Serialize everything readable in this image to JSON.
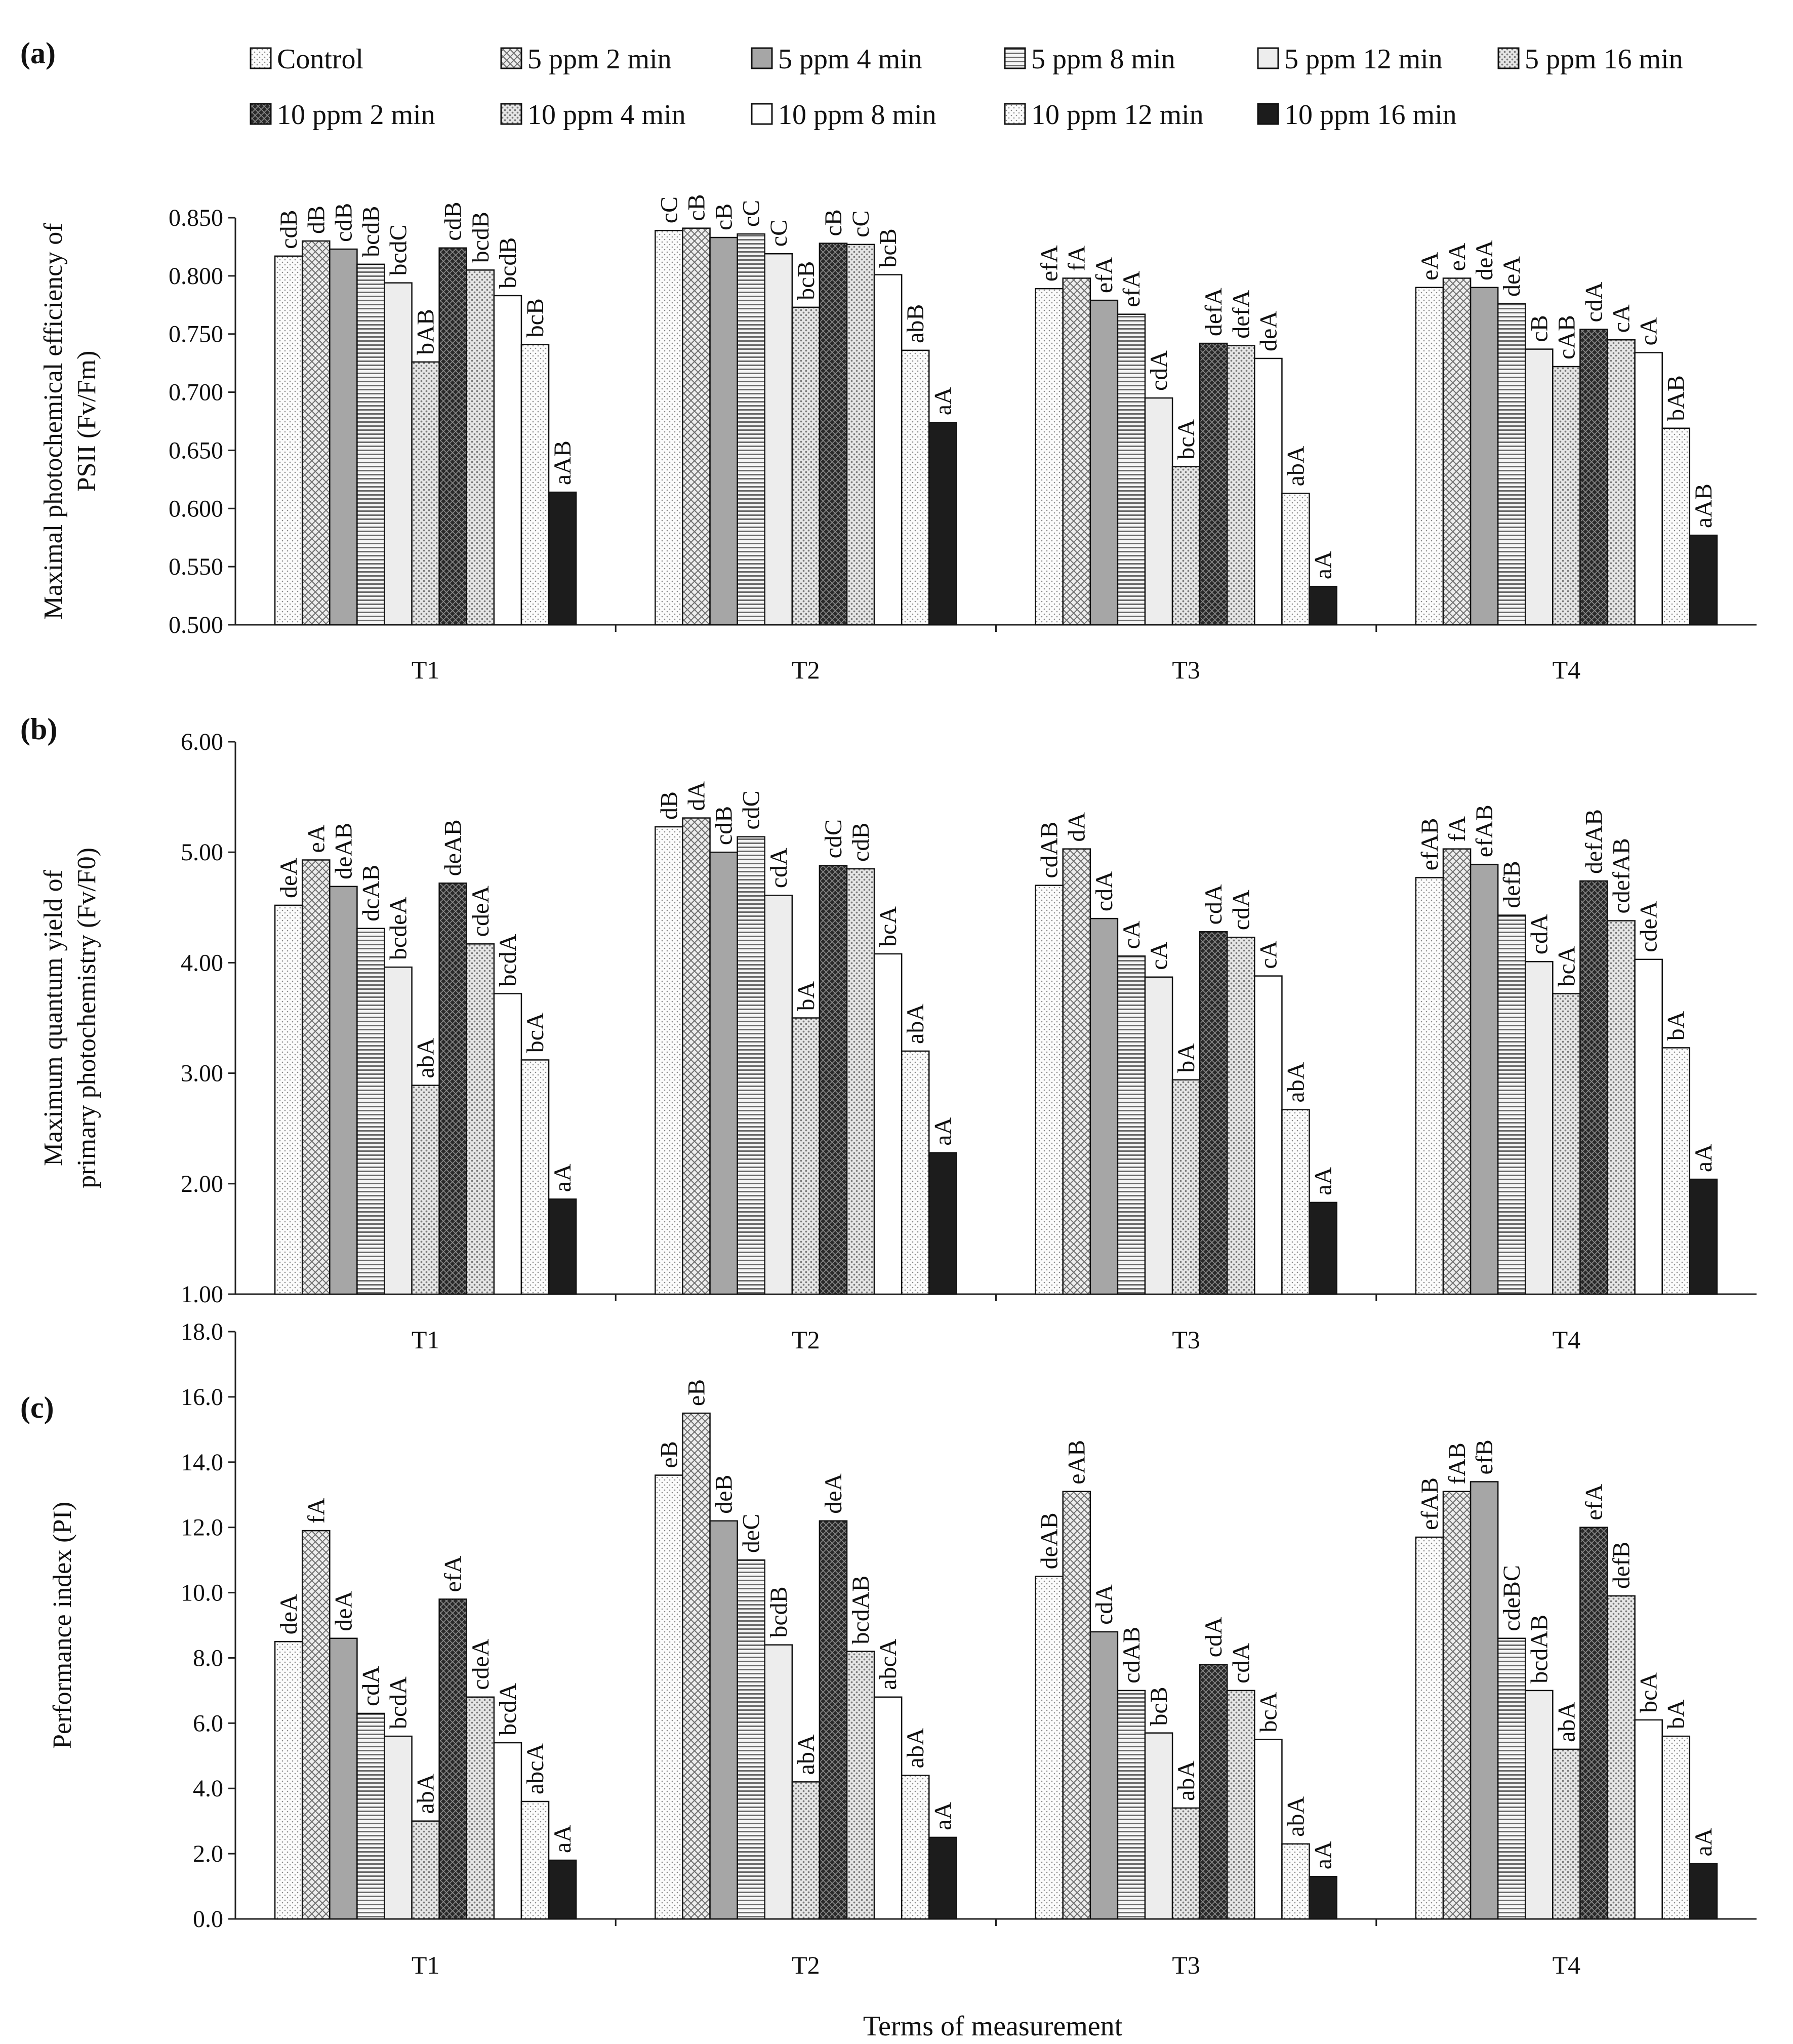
{
  "series_names": [
    "Control",
    "5 ppm 2 min",
    "5 ppm 4 min",
    "5 ppm 8 min",
    "5 ppm 12 min",
    "5 ppm 16 min",
    "10 ppm 2 min",
    "10 ppm 4 min",
    "10 ppm 8 min",
    "10 ppm 12 min",
    "10 ppm 16 min"
  ],
  "series_colors": [
    "#fafafa",
    "#d6d6d6",
    "#a6a6a6",
    "#dcdcdc",
    "#ededed",
    "#c2c2c2",
    "#3a3a3a",
    "#dedede",
    "#ffffff",
    "#9c9c9c",
    "#1c1c1c"
  ],
  "series_patterns": [
    "dots",
    "crosshatch",
    "solid",
    "hlines",
    "solid",
    "dotsdense",
    "diamond",
    "dotsdense",
    "solid",
    "dots",
    "solid"
  ],
  "chart_data": [
    {
      "panel_label": "(a)",
      "type": "bar",
      "title": "",
      "xlabel": "",
      "ylabel_line1": "Maximal photochemical efficiency of",
      "ylabel_line2": "PSII (Fv/Fm)",
      "ylim": [
        0.5,
        0.85
      ],
      "ytick_values": [
        0.5,
        0.55,
        0.6,
        0.65,
        0.7,
        0.75,
        0.8,
        0.85
      ],
      "ytick_labels": [
        "0.500",
        "0.550",
        "0.600",
        "0.650",
        "0.700",
        "0.750",
        "0.800",
        "0.850"
      ],
      "categories": [
        "T1",
        "T2",
        "T3",
        "T4"
      ],
      "series": [
        {
          "name": "Control",
          "values": [
            0.817,
            0.839,
            0.789,
            0.79
          ]
        },
        {
          "name": "5 ppm 2 min",
          "values": [
            0.83,
            0.841,
            0.798,
            0.798
          ]
        },
        {
          "name": "5 ppm 4 min",
          "values": [
            0.823,
            0.833,
            0.779,
            0.79
          ]
        },
        {
          "name": "5 ppm 8 min",
          "values": [
            0.81,
            0.836,
            0.767,
            0.776
          ]
        },
        {
          "name": "5 ppm 12 min",
          "values": [
            0.794,
            0.819,
            0.695,
            0.737
          ]
        },
        {
          "name": "5 ppm 16 min",
          "values": [
            0.726,
            0.773,
            0.636,
            0.722
          ]
        },
        {
          "name": "10 ppm 2 min",
          "values": [
            0.824,
            0.828,
            0.742,
            0.754
          ]
        },
        {
          "name": "10 ppm 4 min",
          "values": [
            0.805,
            0.827,
            0.74,
            0.745
          ]
        },
        {
          "name": "10 ppm 8 min",
          "values": [
            0.783,
            0.801,
            0.729,
            0.734
          ]
        },
        {
          "name": "10 ppm 12 min",
          "values": [
            0.741,
            0.736,
            0.613,
            0.669
          ]
        },
        {
          "name": "10 ppm 16 min",
          "values": [
            0.614,
            0.674,
            0.533,
            0.577
          ]
        }
      ],
      "bar_labels": [
        [
          "cdB",
          "dB",
          "cdB",
          "bcdB",
          "bcdC",
          "bAB",
          "cdB",
          "bcdB",
          "bcdB",
          "bcB",
          "aAB"
        ],
        [
          "cC",
          "cB",
          "cB",
          "cC",
          "cC",
          "bcB",
          "cB",
          "cC",
          "bcB",
          "abB",
          "aA"
        ],
        [
          "efA",
          "fA",
          "efA",
          "efA",
          "cdA",
          "bcA",
          "defA",
          "defA",
          "deA",
          "abA",
          "aA"
        ],
        [
          "eA",
          "eA",
          "deA",
          "deA",
          "cB",
          "cAB",
          "cdA",
          "cA",
          "cA",
          "bAB",
          "aAB"
        ]
      ]
    },
    {
      "panel_label": "(b)",
      "type": "bar",
      "title": "",
      "xlabel": "",
      "ylabel_line1": "Maximum quantum yield of",
      "ylabel_line2": "primary photochemistry (Fv/F0)",
      "ylim": [
        1.0,
        6.0
      ],
      "ytick_values": [
        1,
        2,
        3,
        4,
        5,
        6
      ],
      "ytick_labels": [
        "1.00",
        "2.00",
        "3.00",
        "4.00",
        "5.00",
        "6.00"
      ],
      "categories": [
        "T1",
        "T2",
        "T3",
        "T4"
      ],
      "series": [
        {
          "name": "Control",
          "values": [
            4.52,
            5.23,
            4.7,
            4.77
          ]
        },
        {
          "name": "5 ppm 2 min",
          "values": [
            4.93,
            5.31,
            5.03,
            5.03
          ]
        },
        {
          "name": "5 ppm 4 min",
          "values": [
            4.69,
            5.0,
            4.4,
            4.89
          ]
        },
        {
          "name": "5 ppm 8 min",
          "values": [
            4.31,
            5.14,
            4.06,
            4.43
          ]
        },
        {
          "name": "5 ppm 12 min",
          "values": [
            3.96,
            4.61,
            3.87,
            4.01
          ]
        },
        {
          "name": "5 ppm 16 min",
          "values": [
            2.89,
            3.5,
            2.94,
            3.72
          ]
        },
        {
          "name": "10 ppm 2 min",
          "values": [
            4.72,
            4.88,
            4.28,
            4.74
          ]
        },
        {
          "name": "10 ppm 4 min",
          "values": [
            4.17,
            4.85,
            4.23,
            4.38
          ]
        },
        {
          "name": "10 ppm 8 min",
          "values": [
            3.72,
            4.08,
            3.88,
            4.03
          ]
        },
        {
          "name": "10 ppm 12 min",
          "values": [
            3.12,
            3.2,
            2.67,
            3.23
          ]
        },
        {
          "name": "10 ppm 16 min",
          "values": [
            1.86,
            2.28,
            1.83,
            2.04
          ]
        }
      ],
      "bar_labels": [
        [
          "deA",
          "eA",
          "deAB",
          "dcAB",
          "bcdeA",
          "abA",
          "deAB",
          "cdeA",
          "bcdA",
          "bcA",
          "aA"
        ],
        [
          "dB",
          "dA",
          "cdB",
          "cdC",
          "cdA",
          "bA",
          "cdC",
          "cdB",
          "bcA",
          "abA",
          "aA"
        ],
        [
          "cdAB",
          "dA",
          "cdA",
          "cA",
          "cA",
          "bA",
          "cdA",
          "cdA",
          "cA",
          "abA",
          "aA"
        ],
        [
          "efAB",
          "fA",
          "efAB",
          "defB",
          "cdA",
          "bcA",
          "defAB",
          "cdefAB",
          "cdeA",
          "bA",
          "aA"
        ]
      ]
    },
    {
      "panel_label": "(c)",
      "type": "bar",
      "title": "",
      "xlabel": "Terms of measurement",
      "ylabel_line1": "Performance index (PI)",
      "ylabel_line2": "",
      "ylim": [
        0,
        18
      ],
      "ytick_values": [
        0,
        2,
        4,
        6,
        8,
        10,
        12,
        14,
        16,
        18
      ],
      "ytick_labels": [
        "0.0",
        "2.0",
        "4.0",
        "6.0",
        "8.0",
        "10.0",
        "12.0",
        "14.0",
        "16.0",
        "18.0"
      ],
      "categories": [
        "T1",
        "T2",
        "T3",
        "T4"
      ],
      "series": [
        {
          "name": "Control",
          "values": [
            8.5,
            13.6,
            10.5,
            11.7
          ]
        },
        {
          "name": "5 ppm 2 min",
          "values": [
            11.9,
            15.5,
            13.1,
            13.1
          ]
        },
        {
          "name": "5 ppm 4 min",
          "values": [
            8.6,
            12.2,
            8.8,
            13.4
          ]
        },
        {
          "name": "5 ppm 8 min",
          "values": [
            6.3,
            11.0,
            7.0,
            8.6
          ]
        },
        {
          "name": "5 ppm 12 min",
          "values": [
            5.6,
            8.4,
            5.7,
            7.0
          ]
        },
        {
          "name": "5 ppm 16 min",
          "values": [
            3.0,
            4.2,
            3.4,
            5.2
          ]
        },
        {
          "name": "10 ppm 2 min",
          "values": [
            9.8,
            12.2,
            7.8,
            12.0
          ]
        },
        {
          "name": "10 ppm 4 min",
          "values": [
            6.8,
            8.2,
            7.0,
            9.9
          ]
        },
        {
          "name": "10 ppm 8 min",
          "values": [
            5.4,
            6.8,
            5.5,
            6.1
          ]
        },
        {
          "name": "10 ppm 12 min",
          "values": [
            3.6,
            4.4,
            2.3,
            5.6
          ]
        },
        {
          "name": "10 ppm 16 min",
          "values": [
            1.8,
            2.5,
            1.3,
            1.7
          ]
        }
      ],
      "bar_labels": [
        [
          "deA",
          "fA",
          "deA",
          "cdA",
          "bcdA",
          "abA",
          "efA",
          "cdeA",
          "bcdA",
          "abcA",
          "aA"
        ],
        [
          "eB",
          "eB",
          "deB",
          "deC",
          "bcdB",
          "abA",
          "deA",
          "bcdAB",
          "abcA",
          "abA",
          "aA"
        ],
        [
          "deAB",
          "eAB",
          "cdA",
          "cdAB",
          "bcB",
          "abA",
          "cdA",
          "cdA",
          "bcA",
          "abA",
          "aA"
        ],
        [
          "efAB",
          "fAB",
          "efB",
          "cdeBC",
          "bcdAB",
          "abA",
          "efA",
          "defB",
          "bcA",
          "bA",
          "aA"
        ]
      ]
    }
  ]
}
